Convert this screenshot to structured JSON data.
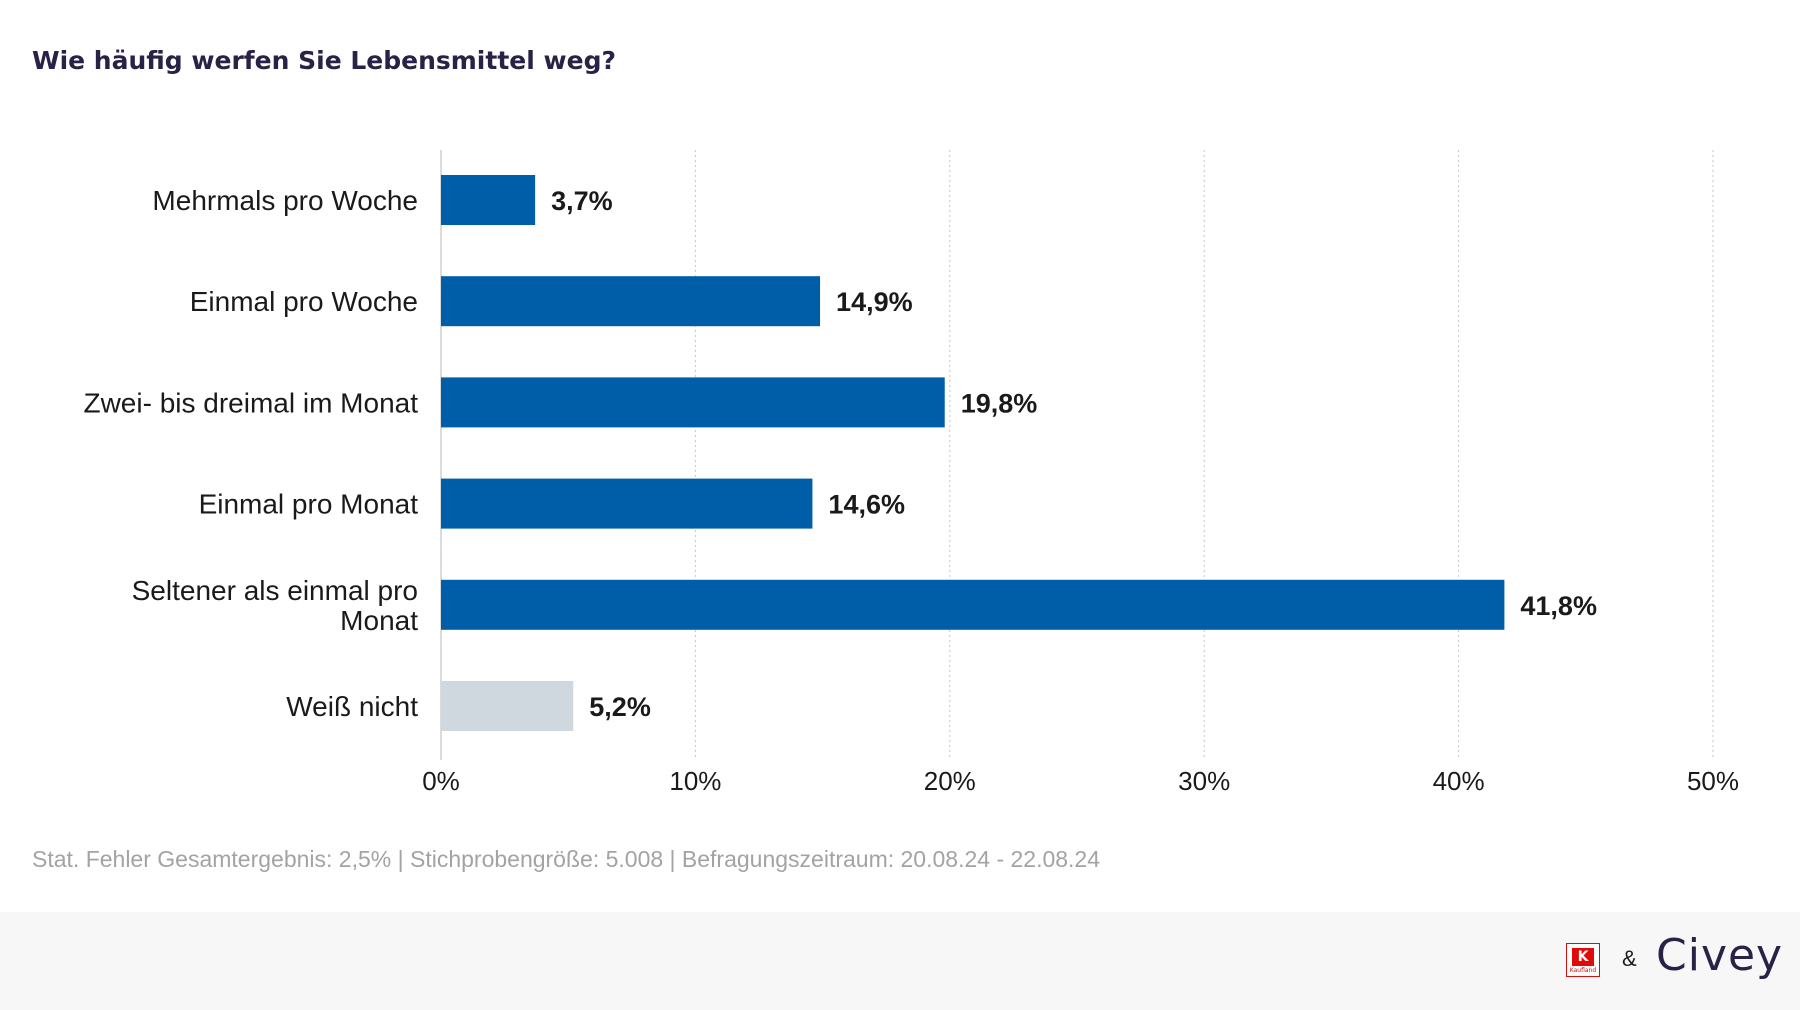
{
  "chart_data": {
    "type": "bar",
    "orientation": "horizontal",
    "title": "Wie häufig werfen Sie Lebensmittel weg?",
    "categories": [
      [
        "Mehrmals pro Woche"
      ],
      [
        "Einmal pro Woche"
      ],
      [
        "Zwei- bis dreimal im Monat"
      ],
      [
        "Einmal pro Monat"
      ],
      [
        "Seltener als einmal pro",
        "Monat"
      ],
      [
        "Weiß nicht"
      ]
    ],
    "values": [
      3.7,
      14.9,
      19.8,
      14.6,
      41.8,
      5.2
    ],
    "value_labels": [
      "3,7%",
      "14,9%",
      "19,8%",
      "14,6%",
      "41,8%",
      "5,2%"
    ],
    "bar_colors": [
      "#005da8",
      "#005da8",
      "#005da8",
      "#005da8",
      "#005da8",
      "#d0d8df"
    ],
    "xlim": [
      0,
      50
    ],
    "xticks": [
      0,
      10,
      20,
      30,
      40,
      50
    ],
    "xtick_labels": [
      "0%",
      "10%",
      "20%",
      "30%",
      "40%",
      "50%"
    ],
    "grid": "vertical dotted"
  },
  "footnote": "Stat. Fehler Gesamtergebnis: 2,5% | Stichprobengröße: 5.008 | Befragungszeitraum: 20.08.24 - 22.08.24",
  "branding": {
    "kaufland_mark": "K",
    "kaufland_wordmark": "Kaufland",
    "ampersand": "&",
    "civey_wordmark": "Civey"
  }
}
